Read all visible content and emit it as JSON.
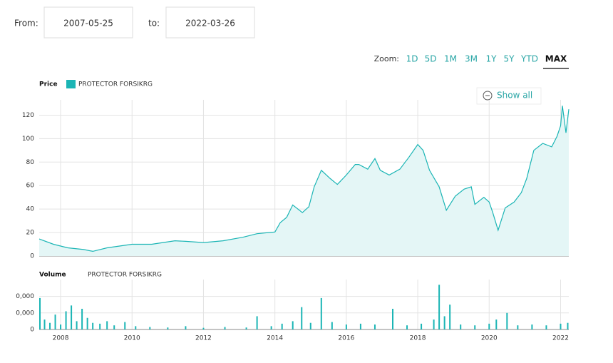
{
  "controls": {
    "from_label": "From:",
    "from_value": "2007-05-25",
    "to_label": "to:",
    "to_value": "2022-03-26",
    "zoom_label": "Zoom:",
    "zoom_options": [
      "1D",
      "5D",
      "1M",
      "3M",
      "1Y",
      "5Y",
      "YTD",
      "MAX"
    ],
    "zoom_selected": "MAX",
    "show_all": "Show all"
  },
  "chart_data": [
    {
      "type": "area",
      "title": "Price",
      "color": "#1bb5b5",
      "fill": "#e4f6f6",
      "grid": true,
      "xlim": [
        2007.4,
        2022.23
      ],
      "ylim": [
        0,
        130
      ],
      "yticks": [
        0,
        20,
        40,
        60,
        80,
        100,
        120
      ],
      "series": [
        {
          "name": "PROTECTOR FORSIKRG",
          "color": "#1bb5b5",
          "x": [
            2007.4,
            2007.8,
            2008.2,
            2008.65,
            2008.9,
            2009.3,
            2010,
            2010.55,
            2011.2,
            2011.5,
            2012,
            2012.55,
            2013.1,
            2013.5,
            2014,
            2014.15,
            2014.33,
            2014.5,
            2014.77,
            2014.95,
            2015.1,
            2015.3,
            2015.55,
            2015.75,
            2016,
            2016.25,
            2016.35,
            2016.6,
            2016.8,
            2016.95,
            2017.2,
            2017.5,
            2017.75,
            2018,
            2018.15,
            2018.33,
            2018.6,
            2018.8,
            2019.05,
            2019.3,
            2019.5,
            2019.6,
            2019.85,
            2020,
            2020.1,
            2020.25,
            2020.45,
            2020.7,
            2020.9,
            2021.05,
            2021.25,
            2021.5,
            2021.75,
            2021.9,
            2022,
            2022.05,
            2022.15,
            2022.23
          ],
          "values": [
            14.5,
            10,
            7,
            5.5,
            4,
            7,
            10,
            10,
            13,
            12.5,
            11.5,
            13,
            16,
            19,
            20.5,
            28.5,
            33,
            43.5,
            37,
            42,
            59,
            73,
            66,
            61,
            69,
            78,
            78,
            74,
            83,
            73,
            69,
            74,
            84,
            95,
            90,
            73,
            59,
            39,
            51,
            57,
            59,
            44,
            50,
            46,
            37,
            22,
            41,
            46,
            54,
            66,
            90,
            96,
            93,
            102,
            111,
            128,
            105,
            125
          ]
        }
      ]
    },
    {
      "type": "bar",
      "title": "Volume",
      "color": "#1bb5b5",
      "grid": true,
      "xlim": [
        2007.4,
        2022.23
      ],
      "xticks": [
        2008,
        2010,
        2012,
        2014,
        2016,
        2018,
        2020,
        2022
      ],
      "ylim": [
        0,
        2800000
      ],
      "yticks": [
        {
          "value": 2000000,
          "label": "0,000"
        },
        {
          "value": 1000000,
          "label": "0,000"
        },
        0
      ],
      "series": [
        {
          "name": "PROTECTOR FORSIKRG",
          "color": "#1bb5b5",
          "x": [
            2007.42,
            2007.55,
            2007.7,
            2007.85,
            2008.0,
            2008.15,
            2008.3,
            2008.45,
            2008.6,
            2008.75,
            2008.9,
            2009.1,
            2009.3,
            2009.5,
            2009.8,
            2010.1,
            2010.5,
            2011.0,
            2011.5,
            2012.0,
            2012.6,
            2013.2,
            2013.5,
            2013.9,
            2014.2,
            2014.5,
            2014.75,
            2015.0,
            2015.3,
            2015.6,
            2016.0,
            2016.4,
            2016.8,
            2017.3,
            2017.7,
            2018.1,
            2018.45,
            2018.6,
            2018.75,
            2018.9,
            2019.2,
            2019.6,
            2020.0,
            2020.2,
            2020.5,
            2020.8,
            2021.2,
            2021.6,
            2022.0,
            2022.2
          ],
          "values": [
            1900000,
            600000,
            400000,
            900000,
            300000,
            1100000,
            1450000,
            500000,
            1250000,
            700000,
            400000,
            350000,
            500000,
            250000,
            450000,
            200000,
            150000,
            120000,
            200000,
            100000,
            150000,
            120000,
            800000,
            200000,
            350000,
            500000,
            1350000,
            400000,
            1900000,
            450000,
            300000,
            350000,
            300000,
            1250000,
            250000,
            350000,
            600000,
            2700000,
            800000,
            1500000,
            300000,
            250000,
            350000,
            600000,
            1000000,
            250000,
            300000,
            250000,
            350000,
            400000
          ]
        }
      ]
    }
  ]
}
